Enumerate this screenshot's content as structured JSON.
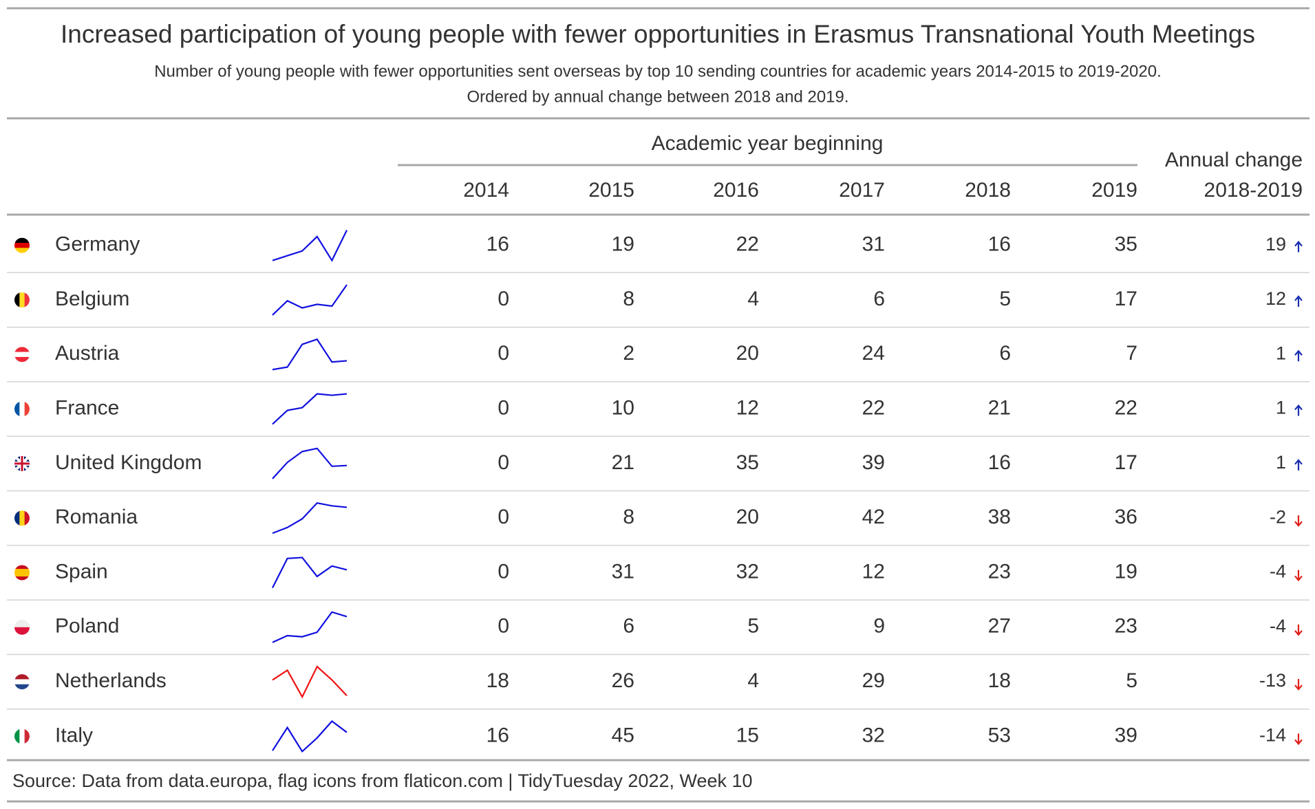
{
  "header": {
    "title": "Increased participation of young people with fewer opportunities in Erasmus Transnational Youth Meetings",
    "subtitle": [
      "Number of young people with fewer opportunities sent overseas by top 10 sending countries for academic years 2014-2015 to 2019-2020.",
      "Ordered by annual change between 2018 and 2019."
    ]
  },
  "table": {
    "spanner": "Academic year beginning",
    "columns": [
      "2014",
      "2015",
      "2016",
      "2017",
      "2018",
      "2019"
    ],
    "change_header": [
      "Annual change",
      "2018-2019"
    ],
    "up_color": "#1a2fb0",
    "down_color": "#e0201b",
    "rows": [
      {
        "country": "Germany",
        "values": [
          16,
          19,
          22,
          31,
          16,
          35
        ],
        "change": 19,
        "sparkline_color": "#1010e0"
      },
      {
        "country": "Belgium",
        "values": [
          0,
          8,
          4,
          6,
          5,
          17
        ],
        "change": 12,
        "sparkline_color": "#1010e0"
      },
      {
        "country": "Austria",
        "values": [
          0,
          2,
          20,
          24,
          6,
          7
        ],
        "change": 1,
        "sparkline_color": "#1010e0"
      },
      {
        "country": "France",
        "values": [
          0,
          10,
          12,
          22,
          21,
          22
        ],
        "change": 1,
        "sparkline_color": "#1010e0"
      },
      {
        "country": "United Kingdom",
        "values": [
          0,
          21,
          35,
          39,
          16,
          17
        ],
        "change": 1,
        "sparkline_color": "#1010e0"
      },
      {
        "country": "Romania",
        "values": [
          0,
          8,
          20,
          42,
          38,
          36
        ],
        "change": -2,
        "sparkline_color": "#1010e0"
      },
      {
        "country": "Spain",
        "values": [
          0,
          31,
          32,
          12,
          23,
          19
        ],
        "change": -4,
        "sparkline_color": "#1010e0"
      },
      {
        "country": "Poland",
        "values": [
          0,
          6,
          5,
          9,
          27,
          23
        ],
        "change": -4,
        "sparkline_color": "#1010e0"
      },
      {
        "country": "Netherlands",
        "values": [
          18,
          26,
          4,
          29,
          18,
          5
        ],
        "change": -13,
        "sparkline_color": "#f01010"
      },
      {
        "country": "Italy",
        "values": [
          16,
          45,
          15,
          32,
          53,
          39
        ],
        "change": -14,
        "sparkline_color": "#1010e0"
      }
    ]
  },
  "source": "Source: Data from data.europa, flag icons from flaticon.com | TidyTuesday 2022, Week 10"
}
